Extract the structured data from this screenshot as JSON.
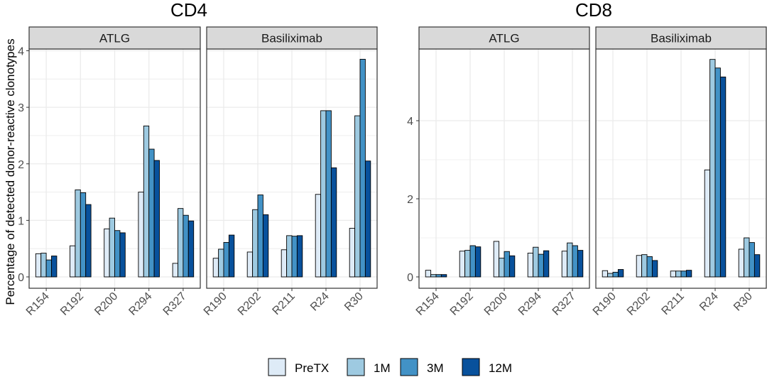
{
  "ylabel": "Percentage of detected donor-reactive clonotypes",
  "colors": {
    "PreTX": "#deebf7",
    "1M": "#9ecae1",
    "3M": "#4292c6",
    "12M": "#08519c",
    "strip_bg": "#d9d9d9",
    "panel_border": "#333333",
    "grid": "#ebebeb",
    "bar_outline": "#000000"
  },
  "legend": {
    "entries": [
      "PreTX",
      "1M",
      "3M",
      "12M"
    ]
  },
  "chart_data": [
    {
      "type": "bar",
      "title": "CD4",
      "series_names": [
        "PreTX",
        "1M",
        "3M",
        "12M"
      ],
      "ylim": [
        0,
        4.2
      ],
      "yticks": [
        0,
        1,
        2,
        3,
        4
      ],
      "facets": [
        {
          "strip": "ATLG",
          "categories": [
            "R154",
            "R192",
            "R200",
            "R294",
            "R327"
          ],
          "values": [
            [
              0.41,
              0.42,
              0.3,
              0.37
            ],
            [
              0.55,
              1.54,
              1.49,
              1.28
            ],
            [
              0.85,
              1.04,
              0.82,
              0.78
            ],
            [
              1.5,
              2.67,
              2.26,
              2.06
            ],
            [
              0.24,
              1.21,
              1.09,
              0.99
            ]
          ]
        },
        {
          "strip": "Basiliximab",
          "categories": [
            "R190",
            "R202",
            "R211",
            "R24",
            "R30"
          ],
          "values": [
            [
              0.33,
              0.49,
              0.61,
              0.74
            ],
            [
              0.44,
              1.19,
              1.45,
              1.1
            ],
            [
              0.48,
              0.73,
              0.72,
              0.73
            ],
            [
              1.46,
              2.94,
              2.94,
              1.93
            ],
            [
              0.86,
              2.85,
              3.85,
              2.05
            ]
          ]
        }
      ]
    },
    {
      "type": "bar",
      "title": "CD8",
      "series_names": [
        "PreTX",
        "1M",
        "3M",
        "12M"
      ],
      "ylim": [
        0,
        5.7
      ],
      "yticks": [
        0,
        2,
        4
      ],
      "facets": [
        {
          "strip": "ATLG",
          "categories": [
            "R154",
            "R192",
            "R200",
            "R294",
            "R327"
          ],
          "values": [
            [
              0.17,
              0.06,
              0.06,
              0.06
            ],
            [
              0.66,
              0.68,
              0.8,
              0.77
            ],
            [
              0.91,
              0.48,
              0.65,
              0.54
            ],
            [
              0.61,
              0.76,
              0.58,
              0.67
            ],
            [
              0.66,
              0.87,
              0.8,
              0.68
            ]
          ]
        },
        {
          "strip": "Basiliximab",
          "categories": [
            "R190",
            "R202",
            "R211",
            "R24",
            "R30"
          ],
          "values": [
            [
              0.16,
              0.09,
              0.12,
              0.19
            ],
            [
              0.55,
              0.57,
              0.52,
              0.42
            ],
            [
              0.15,
              0.15,
              0.15,
              0.17
            ],
            [
              2.74,
              5.57,
              5.35,
              5.12
            ],
            [
              0.71,
              1.0,
              0.88,
              0.57
            ]
          ]
        }
      ]
    }
  ]
}
